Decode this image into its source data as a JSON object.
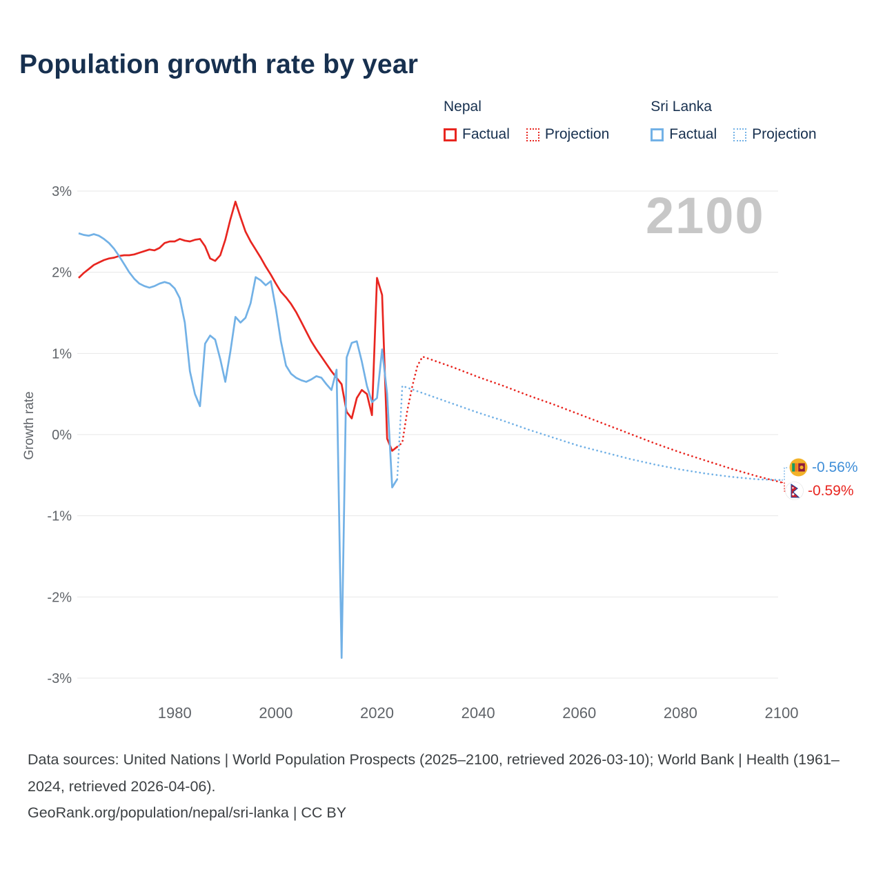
{
  "page": {
    "title": "Population growth rate by year",
    "watermark": "2100"
  },
  "legend": {
    "groups": [
      {
        "name": "Nepal",
        "color": "#e82620",
        "items": [
          {
            "label": "Factual",
            "style": "solid"
          },
          {
            "label": "Projection",
            "style": "dotted"
          }
        ]
      },
      {
        "name": "Sri Lanka",
        "color": "#72b1e6",
        "items": [
          {
            "label": "Factual",
            "style": "solid"
          },
          {
            "label": "Projection",
            "style": "dotted"
          }
        ]
      }
    ]
  },
  "end_labels": [
    {
      "country": "Sri Lanka",
      "value": "-0.56%",
      "color": "#3f8ed8",
      "flag": "sri-lanka-flag"
    },
    {
      "country": "Nepal",
      "value": "-0.59%",
      "color": "#e82620",
      "flag": "nepal-flag"
    }
  ],
  "chart_data": {
    "type": "line",
    "title": "Population growth rate by year",
    "xlabel": "",
    "ylabel": "Growth rate",
    "xlim": [
      1961,
      2100
    ],
    "ylim": [
      -3,
      3
    ],
    "grid": true,
    "legend_position": "top-right",
    "yticks": [
      {
        "value": 3,
        "label": "3%"
      },
      {
        "value": 2,
        "label": "2%"
      },
      {
        "value": 1,
        "label": "1%"
      },
      {
        "value": 0,
        "label": "0%"
      },
      {
        "value": -1,
        "label": "-1%"
      },
      {
        "value": -2,
        "label": "-2%"
      },
      {
        "value": -3,
        "label": "-3%"
      }
    ],
    "xticks": [
      {
        "value": 1980,
        "label": "1980"
      },
      {
        "value": 2000,
        "label": "2000"
      },
      {
        "value": 2020,
        "label": "2020"
      },
      {
        "value": 2040,
        "label": "2040"
      },
      {
        "value": 2060,
        "label": "2060"
      },
      {
        "value": 2080,
        "label": "2080"
      },
      {
        "value": 2100,
        "label": "2100"
      }
    ],
    "series": [
      {
        "name": "Nepal Factual",
        "color": "#e82620",
        "dash": "solid",
        "points": [
          [
            1961,
            1.93
          ],
          [
            1962,
            1.99
          ],
          [
            1963,
            2.04
          ],
          [
            1964,
            2.09
          ],
          [
            1965,
            2.12
          ],
          [
            1966,
            2.15
          ],
          [
            1967,
            2.17
          ],
          [
            1968,
            2.18
          ],
          [
            1969,
            2.2
          ],
          [
            1970,
            2.21
          ],
          [
            1971,
            2.21
          ],
          [
            1972,
            2.22
          ],
          [
            1973,
            2.24
          ],
          [
            1974,
            2.26
          ],
          [
            1975,
            2.28
          ],
          [
            1976,
            2.27
          ],
          [
            1977,
            2.3
          ],
          [
            1978,
            2.36
          ],
          [
            1979,
            2.38
          ],
          [
            1980,
            2.38
          ],
          [
            1981,
            2.41
          ],
          [
            1982,
            2.39
          ],
          [
            1983,
            2.38
          ],
          [
            1984,
            2.4
          ],
          [
            1985,
            2.41
          ],
          [
            1986,
            2.32
          ],
          [
            1987,
            2.17
          ],
          [
            1988,
            2.14
          ],
          [
            1989,
            2.21
          ],
          [
            1990,
            2.4
          ],
          [
            1991,
            2.65
          ],
          [
            1992,
            2.87
          ],
          [
            1993,
            2.68
          ],
          [
            1994,
            2.5
          ],
          [
            1995,
            2.38
          ],
          [
            1996,
            2.28
          ],
          [
            1997,
            2.18
          ],
          [
            1998,
            2.07
          ],
          [
            1999,
            1.97
          ],
          [
            2000,
            1.86
          ],
          [
            2001,
            1.76
          ],
          [
            2002,
            1.69
          ],
          [
            2003,
            1.61
          ],
          [
            2004,
            1.51
          ],
          [
            2005,
            1.39
          ],
          [
            2006,
            1.27
          ],
          [
            2007,
            1.15
          ],
          [
            2008,
            1.05
          ],
          [
            2009,
            0.96
          ],
          [
            2010,
            0.87
          ],
          [
            2011,
            0.78
          ],
          [
            2012,
            0.7
          ],
          [
            2013,
            0.62
          ],
          [
            2014,
            0.28
          ],
          [
            2015,
            0.2
          ],
          [
            2016,
            0.45
          ],
          [
            2017,
            0.55
          ],
          [
            2018,
            0.5
          ],
          [
            2019,
            0.24
          ],
          [
            2020,
            1.93
          ],
          [
            2021,
            1.72
          ],
          [
            2022,
            -0.05
          ],
          [
            2023,
            -0.2
          ],
          [
            2024,
            -0.15
          ]
        ]
      },
      {
        "name": "Nepal Projection",
        "color": "#e82620",
        "dash": "dotted",
        "points": [
          [
            2024,
            -0.15
          ],
          [
            2025,
            -0.1
          ],
          [
            2026,
            0.3
          ],
          [
            2027,
            0.6
          ],
          [
            2028,
            0.85
          ],
          [
            2029,
            0.96
          ],
          [
            2030,
            0.94
          ],
          [
            2035,
            0.83
          ],
          [
            2040,
            0.71
          ],
          [
            2045,
            0.6
          ],
          [
            2050,
            0.48
          ],
          [
            2055,
            0.37
          ],
          [
            2060,
            0.25
          ],
          [
            2065,
            0.13
          ],
          [
            2070,
            0.01
          ],
          [
            2075,
            -0.11
          ],
          [
            2080,
            -0.22
          ],
          [
            2085,
            -0.32
          ],
          [
            2090,
            -0.42
          ],
          [
            2095,
            -0.51
          ],
          [
            2100,
            -0.59
          ]
        ]
      },
      {
        "name": "Sri Lanka Factual",
        "color": "#72b1e6",
        "dash": "solid",
        "points": [
          [
            1961,
            2.48
          ],
          [
            1962,
            2.46
          ],
          [
            1963,
            2.45
          ],
          [
            1964,
            2.47
          ],
          [
            1965,
            2.45
          ],
          [
            1966,
            2.41
          ],
          [
            1967,
            2.36
          ],
          [
            1968,
            2.29
          ],
          [
            1969,
            2.2
          ],
          [
            1970,
            2.1
          ],
          [
            1971,
            2.0
          ],
          [
            1972,
            1.92
          ],
          [
            1973,
            1.86
          ],
          [
            1974,
            1.83
          ],
          [
            1975,
            1.81
          ],
          [
            1976,
            1.83
          ],
          [
            1977,
            1.86
          ],
          [
            1978,
            1.88
          ],
          [
            1979,
            1.86
          ],
          [
            1980,
            1.8
          ],
          [
            1981,
            1.68
          ],
          [
            1982,
            1.38
          ],
          [
            1983,
            0.78
          ],
          [
            1984,
            0.5
          ],
          [
            1985,
            0.35
          ],
          [
            1986,
            1.12
          ],
          [
            1987,
            1.22
          ],
          [
            1988,
            1.17
          ],
          [
            1989,
            0.93
          ],
          [
            1990,
            0.65
          ],
          [
            1991,
            1.02
          ],
          [
            1992,
            1.45
          ],
          [
            1993,
            1.38
          ],
          [
            1994,
            1.44
          ],
          [
            1995,
            1.62
          ],
          [
            1996,
            1.94
          ],
          [
            1997,
            1.9
          ],
          [
            1998,
            1.84
          ],
          [
            1999,
            1.89
          ],
          [
            2000,
            1.55
          ],
          [
            2001,
            1.15
          ],
          [
            2002,
            0.85
          ],
          [
            2003,
            0.75
          ],
          [
            2004,
            0.7
          ],
          [
            2005,
            0.67
          ],
          [
            2006,
            0.65
          ],
          [
            2007,
            0.68
          ],
          [
            2008,
            0.72
          ],
          [
            2009,
            0.7
          ],
          [
            2010,
            0.62
          ],
          [
            2011,
            0.55
          ],
          [
            2012,
            0.8
          ],
          [
            2013,
            -2.75
          ],
          [
            2014,
            0.95
          ],
          [
            2015,
            1.13
          ],
          [
            2016,
            1.15
          ],
          [
            2017,
            0.9
          ],
          [
            2018,
            0.6
          ],
          [
            2019,
            0.4
          ],
          [
            2020,
            0.45
          ],
          [
            2021,
            1.05
          ],
          [
            2022,
            0.5
          ],
          [
            2023,
            -0.65
          ],
          [
            2024,
            -0.55
          ]
        ]
      },
      {
        "name": "Sri Lanka Projection",
        "color": "#72b1e6",
        "dash": "dotted",
        "points": [
          [
            2024,
            -0.55
          ],
          [
            2025,
            0.6
          ],
          [
            2030,
            0.49
          ],
          [
            2035,
            0.38
          ],
          [
            2040,
            0.27
          ],
          [
            2045,
            0.17
          ],
          [
            2050,
            0.06
          ],
          [
            2055,
            -0.04
          ],
          [
            2060,
            -0.14
          ],
          [
            2065,
            -0.22
          ],
          [
            2070,
            -0.3
          ],
          [
            2075,
            -0.37
          ],
          [
            2080,
            -0.43
          ],
          [
            2085,
            -0.48
          ],
          [
            2090,
            -0.52
          ],
          [
            2095,
            -0.55
          ],
          [
            2100,
            -0.56
          ]
        ]
      }
    ]
  },
  "footer": {
    "sources": "Data sources: United Nations | World Population Prospects (2025–2100, retrieved 2026-03-10); World Bank | Health (1961–2024, retrieved 2026-04-06).",
    "attribution": "GeoRank.org/population/nepal/sri-lanka | CC BY"
  }
}
